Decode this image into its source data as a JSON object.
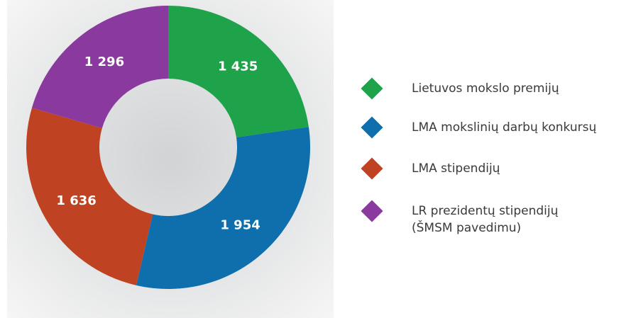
{
  "chart_data": {
    "type": "donut",
    "categories": [
      "Lietuvos mokslo premijų",
      "LMA mokslinių darbų konkursų",
      "LMA stipendijų",
      "LR prezidentų stipendijų\n(ŠMSM pavedimu)"
    ],
    "values": [
      1435,
      1954,
      1636,
      1296
    ],
    "value_labels": [
      "1 435",
      "1 954",
      "1 636",
      "1 296"
    ],
    "colors": [
      "#1fa34a",
      "#0f6fad",
      "#bf4222",
      "#8a3a9e"
    ]
  }
}
